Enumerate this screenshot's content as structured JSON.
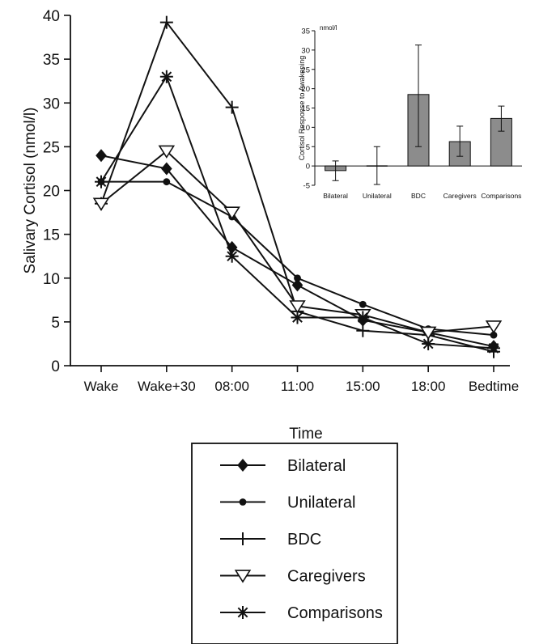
{
  "chart_data": [
    {
      "type": "line",
      "title": "",
      "xlabel": "Time",
      "ylabel": "Salivary Cortisol (nmol/l)",
      "categories": [
        "Wake",
        "Wake+30",
        "08:00",
        "11:00",
        "15:00",
        "18:00",
        "Bedtime"
      ],
      "ylim": [
        0,
        40
      ],
      "yticks": [
        0,
        5,
        10,
        15,
        20,
        25,
        30,
        35,
        40
      ],
      "grid": false,
      "legend_position": "bottom-center",
      "series": [
        {
          "name": "Bilateral",
          "marker": "diamond",
          "values": [
            24,
            22.5,
            13.5,
            9.2,
            5.2,
            3.8,
            2.2
          ]
        },
        {
          "name": "Unilateral",
          "marker": "dot",
          "values": [
            21,
            21,
            17,
            10,
            7,
            4.2,
            3.5
          ]
        },
        {
          "name": "BDC",
          "marker": "plus",
          "values": [
            18.5,
            39.2,
            29.5,
            6.2,
            4,
            3.5,
            1.6
          ]
        },
        {
          "name": "Caregivers",
          "marker": "triangle",
          "values": [
            18.5,
            24.5,
            17.5,
            6.8,
            5.8,
            3.8,
            4.5
          ]
        },
        {
          "name": "Comparisons",
          "marker": "asterisk",
          "values": [
            21,
            33,
            12.5,
            5.5,
            5.5,
            2.5,
            2
          ]
        }
      ]
    },
    {
      "type": "bar",
      "title": "",
      "xlabel": "",
      "ylabel": "Cortisol Response to Awakening",
      "unit": "nmol/l",
      "categories": [
        "Bilateral",
        "Unilateral",
        "BDC",
        "Caregivers",
        "Comparisons"
      ],
      "values": [
        -1.2,
        0,
        18.5,
        6.3,
        12.3
      ],
      "error_low": [
        -3.8,
        -4.8,
        5,
        2.5,
        9
      ],
      "error_high": [
        1.3,
        5,
        31.3,
        10.3,
        15.5
      ],
      "ylim": [
        -5,
        35
      ],
      "yticks": [
        -5,
        0,
        5,
        10,
        15,
        20,
        25,
        30,
        35
      ],
      "bar_color": "#8c8c8c"
    }
  ]
}
